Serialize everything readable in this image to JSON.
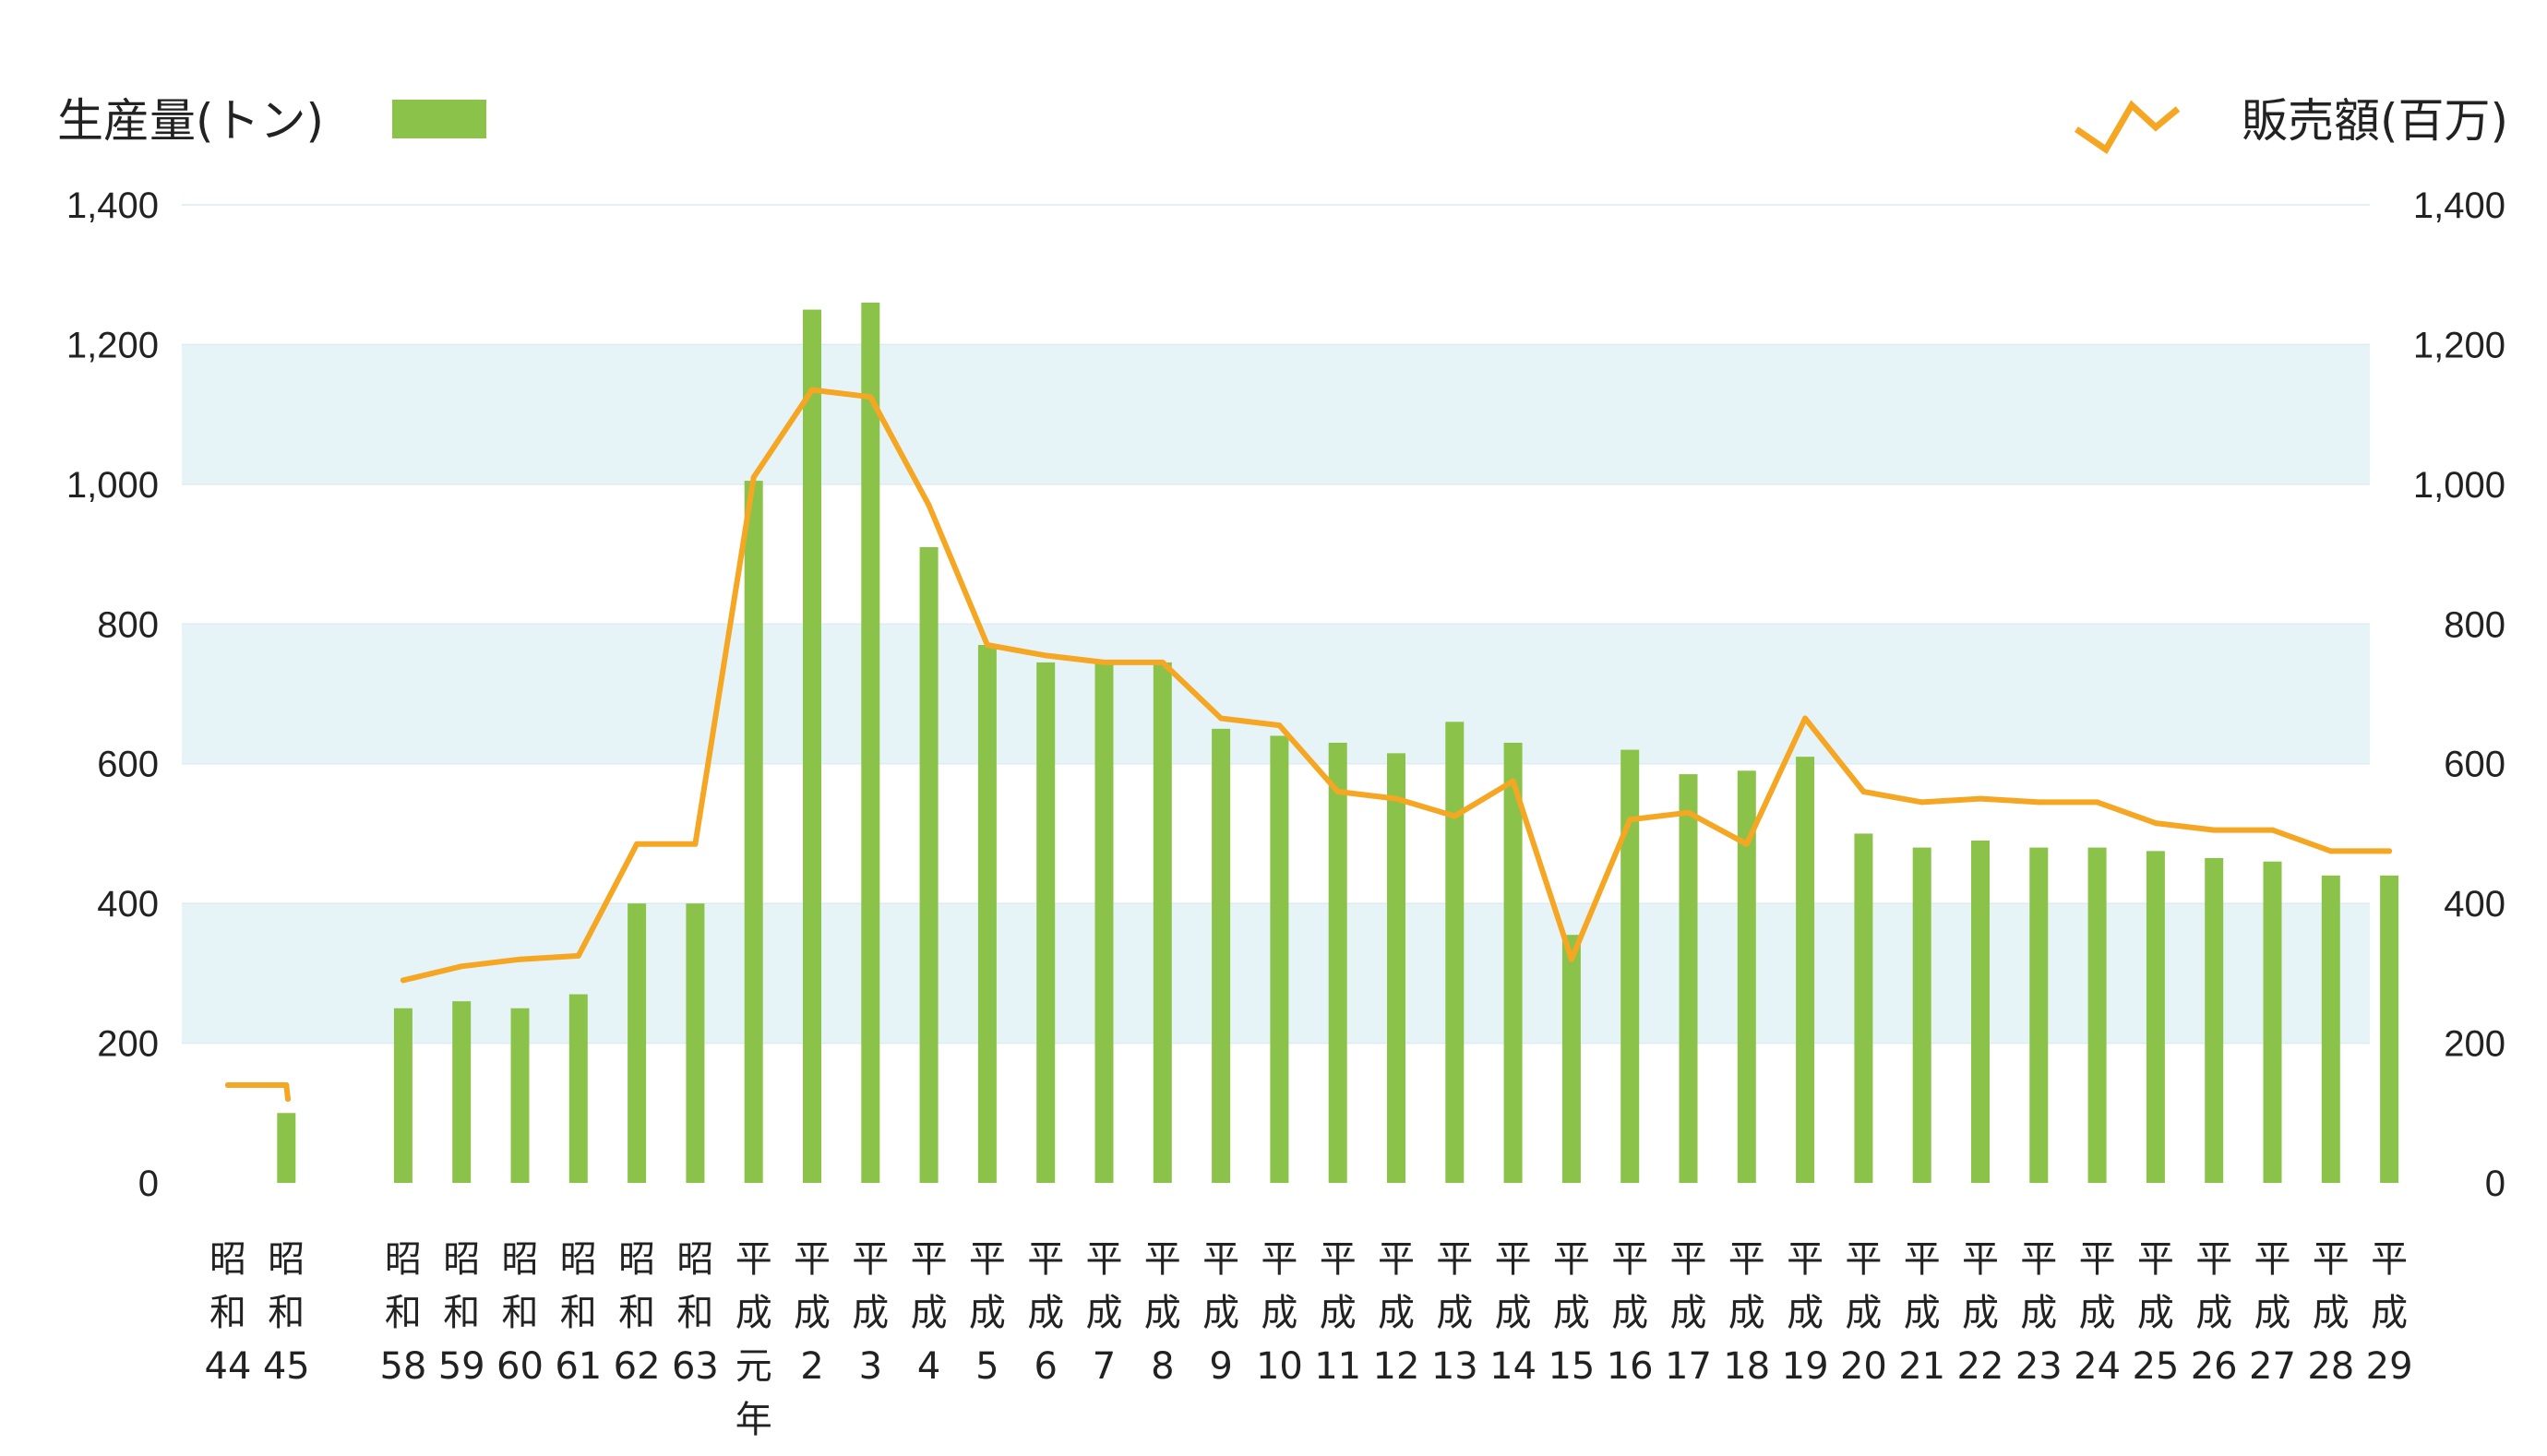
{
  "chart_data": {
    "type": "bar",
    "legend": {
      "left_label": "生産量(トン)",
      "right_label": "販売額(百万)"
    },
    "colors": {
      "bar": "#8bc34a",
      "line": "#f5a623",
      "band": "#e6f4f8",
      "grid": "#dcecf1"
    },
    "y_left": {
      "min": 0,
      "max": 1400,
      "ticks": [
        "0",
        "200",
        "400",
        "600",
        "800",
        "1,000",
        "1,200",
        "1,400"
      ]
    },
    "y_right": {
      "min": 0,
      "max": 1400,
      "ticks": [
        "0",
        "200",
        "400",
        "600",
        "800",
        "1,000",
        "1,200",
        "1,400"
      ]
    },
    "grid": "horizontal bands",
    "categories": [
      {
        "era": "昭和",
        "year": "44"
      },
      {
        "era": "昭和",
        "year": "45"
      },
      {
        "era": "",
        "year": ""
      },
      {
        "era": "昭和",
        "year": "58"
      },
      {
        "era": "昭和",
        "year": "59"
      },
      {
        "era": "昭和",
        "year": "60"
      },
      {
        "era": "昭和",
        "year": "61"
      },
      {
        "era": "昭和",
        "year": "62"
      },
      {
        "era": "昭和",
        "year": "63"
      },
      {
        "era": "平成",
        "year": "元年"
      },
      {
        "era": "平成",
        "year": "2"
      },
      {
        "era": "平成",
        "year": "3"
      },
      {
        "era": "平成",
        "year": "4"
      },
      {
        "era": "平成",
        "year": "5"
      },
      {
        "era": "平成",
        "year": "6"
      },
      {
        "era": "平成",
        "year": "7"
      },
      {
        "era": "平成",
        "year": "8"
      },
      {
        "era": "平成",
        "year": "9"
      },
      {
        "era": "平成",
        "year": "10"
      },
      {
        "era": "平成",
        "year": "11"
      },
      {
        "era": "平成",
        "year": "12"
      },
      {
        "era": "平成",
        "year": "13"
      },
      {
        "era": "平成",
        "year": "14"
      },
      {
        "era": "平成",
        "year": "15"
      },
      {
        "era": "平成",
        "year": "16"
      },
      {
        "era": "平成",
        "year": "17"
      },
      {
        "era": "平成",
        "year": "18"
      },
      {
        "era": "平成",
        "year": "19"
      },
      {
        "era": "平成",
        "year": "20"
      },
      {
        "era": "平成",
        "year": "21"
      },
      {
        "era": "平成",
        "year": "22"
      },
      {
        "era": "平成",
        "year": "23"
      },
      {
        "era": "平成",
        "year": "24"
      },
      {
        "era": "平成",
        "year": "25"
      },
      {
        "era": "平成",
        "year": "26"
      },
      {
        "era": "平成",
        "year": "27"
      },
      {
        "era": "平成",
        "year": "28"
      },
      {
        "era": "平成",
        "year": "29"
      }
    ],
    "series": [
      {
        "name": "生産量(トン)",
        "type": "bar",
        "axis": "left",
        "values": [
          null,
          100,
          null,
          250,
          260,
          250,
          270,
          400,
          400,
          1005,
          1250,
          1260,
          910,
          770,
          745,
          745,
          745,
          650,
          640,
          630,
          615,
          660,
          630,
          355,
          620,
          585,
          590,
          610,
          500,
          480,
          490,
          480,
          480,
          475,
          465,
          460,
          440,
          440
        ]
      },
      {
        "name": "販売額(百万)",
        "type": "line",
        "axis": "right",
        "values": [
          140,
          140,
          120,
          290,
          310,
          320,
          325,
          485,
          485,
          1010,
          1135,
          1125,
          970,
          770,
          755,
          745,
          745,
          665,
          655,
          560,
          550,
          525,
          575,
          320,
          520,
          530,
          485,
          665,
          560,
          545,
          550,
          545,
          545,
          515,
          505,
          505,
          475,
          475
        ]
      }
    ]
  }
}
